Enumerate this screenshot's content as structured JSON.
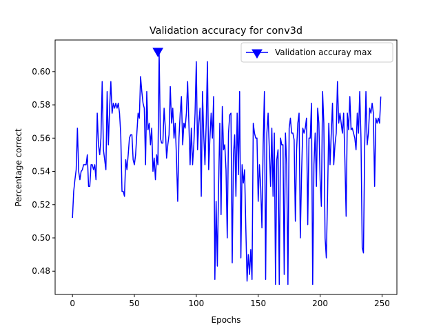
{
  "chart_data": {
    "type": "line",
    "title": "Validation accuracy for conv3d",
    "xlabel": "Epochs",
    "ylabel": "Percentage correct",
    "xlim": [
      -14,
      262
    ],
    "ylim": [
      0.466,
      0.619
    ],
    "xticks": [
      0,
      50,
      100,
      150,
      200,
      250
    ],
    "yticks": [
      0.48,
      0.5,
      0.52,
      0.54,
      0.56,
      0.58,
      0.6
    ],
    "ytick_labels": [
      "0.48",
      "0.50",
      "0.52",
      "0.54",
      "0.56",
      "0.58",
      "0.60"
    ],
    "grid": false,
    "legend_position": "upper right",
    "line_color": "#0000ff",
    "series": [
      {
        "values": [
          0.512,
          0.528,
          0.535,
          0.541,
          0.566,
          0.54,
          0.535,
          0.54,
          0.541,
          0.544,
          0.544,
          0.544,
          0.55,
          0.531,
          0.531,
          0.544,
          0.544,
          0.541,
          0.544,
          0.535,
          0.575,
          0.556,
          0.55,
          0.56,
          0.594,
          0.553,
          0.547,
          0.541,
          0.588,
          0.556,
          0.578,
          0.594,
          0.575,
          0.581,
          0.578,
          0.581,
          0.578,
          0.581,
          0.575,
          0.562,
          0.528,
          0.528,
          0.525,
          0.547,
          0.541,
          0.55,
          0.56,
          0.562,
          0.562,
          0.547,
          0.544,
          0.55,
          0.563,
          0.575,
          0.572,
          0.597,
          0.588,
          0.581,
          0.578,
          0.544,
          0.588,
          0.565,
          0.569,
          0.556,
          0.566,
          0.54,
          0.548,
          0.535,
          0.55,
          0.544,
          0.612,
          0.56,
          0.557,
          0.557,
          0.578,
          0.566,
          0.548,
          0.556,
          0.562,
          0.591,
          0.569,
          0.578,
          0.56,
          0.569,
          0.548,
          0.522,
          0.56,
          0.575,
          0.585,
          0.556,
          0.569,
          0.566,
          0.575,
          0.594,
          0.569,
          0.544,
          0.566,
          0.544,
          0.556,
          0.575,
          0.606,
          0.553,
          0.569,
          0.578,
          0.525,
          0.588,
          0.562,
          0.544,
          0.569,
          0.606,
          0.541,
          0.56,
          0.575,
          0.56,
          0.585,
          0.475,
          0.522,
          0.483,
          0.531,
          0.569,
          0.514,
          0.579,
          0.553,
          0.556,
          0.541,
          0.5,
          0.563,
          0.574,
          0.575,
          0.485,
          0.55,
          0.562,
          0.525,
          0.575,
          0.538,
          0.588,
          0.488,
          0.544,
          0.533,
          0.541,
          0.506,
          0.474,
          0.49,
          0.478,
          0.493,
          0.475,
          0.569,
          0.563,
          0.56,
          0.56,
          0.522,
          0.544,
          0.531,
          0.506,
          0.556,
          0.588,
          0.475,
          0.563,
          0.575,
          0.553,
          0.531,
          0.566,
          0.525,
          0.563,
          0.472,
          0.547,
          0.553,
          0.472,
          0.56,
          0.556,
          0.556,
          0.478,
          0.563,
          0.544,
          0.472,
          0.566,
          0.572,
          0.563,
          0.563,
          0.559,
          0.51,
          0.553,
          0.569,
          0.575,
          0.5,
          0.538,
          0.566,
          0.563,
          0.566,
          0.572,
          0.508,
          0.56,
          0.56,
          0.581,
          0.472,
          0.544,
          0.563,
          0.531,
          0.578,
          0.569,
          0.535,
          0.519,
          0.588,
          0.569,
          0.5,
          0.488,
          0.525,
          0.569,
          0.544,
          0.563,
          0.581,
          0.544,
          0.556,
          0.563,
          0.594,
          0.569,
          0.575,
          0.569,
          0.563,
          0.575,
          0.547,
          0.513,
          0.575,
          0.565,
          0.585,
          0.565,
          0.566,
          0.563,
          0.56,
          0.553,
          0.575,
          0.563,
          0.588,
          0.56,
          0.494,
          0.491,
          0.556,
          0.588,
          0.556,
          0.563,
          0.578,
          0.575,
          0.581,
          0.575,
          0.531,
          0.572,
          0.569,
          0.572,
          0.569,
          0.585
        ]
      }
    ],
    "max_marker": {
      "x": 69,
      "y": 0.612,
      "label": "Validation accuray max",
      "color": "#0000ff"
    }
  }
}
